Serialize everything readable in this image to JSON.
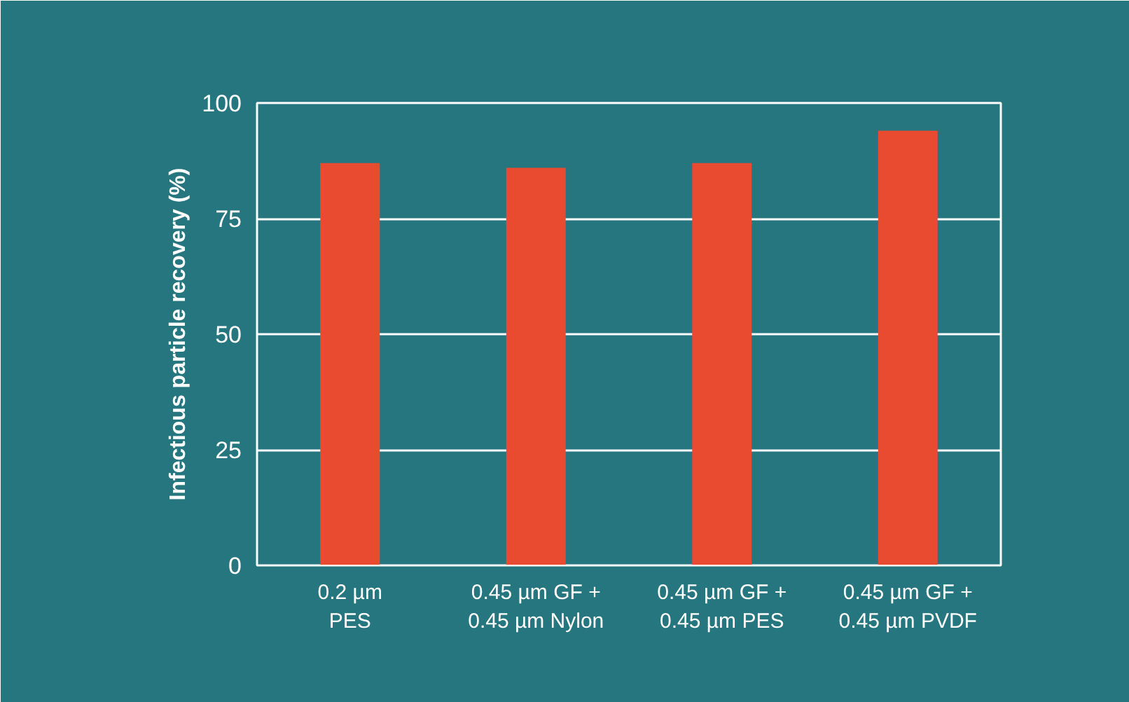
{
  "chart_data": {
    "type": "bar",
    "ylabel": "Infectious particle recovery (%)",
    "categories": [
      "0.2 µm\nPES",
      "0.45 µm GF +\n0.45 µm Nylon",
      "0.45 µm GF +\n0.45 µm PES",
      "0.45 µm GF +\n0.45 µm PVDF"
    ],
    "values": [
      87,
      86,
      87,
      94
    ],
    "color": "#e94b30",
    "ylim": [
      0,
      100
    ],
    "yticks": [
      0,
      25,
      50,
      75,
      100
    ],
    "grid": "y"
  }
}
